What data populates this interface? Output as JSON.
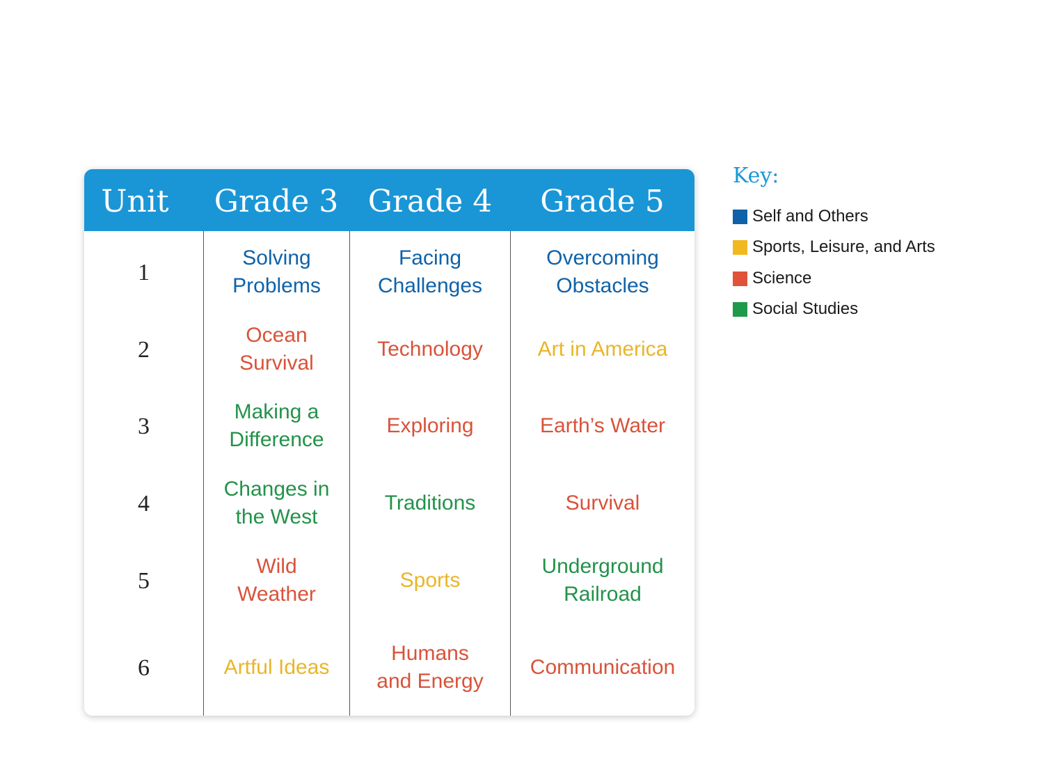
{
  "table": {
    "headers": [
      "Unit",
      "Grade 3",
      "Grade 4",
      "Grade 5"
    ],
    "rows": [
      {
        "unit": "1",
        "cells": [
          {
            "text": "Solving\nProblems",
            "category": "self"
          },
          {
            "text": "Facing\nChallenges",
            "category": "self"
          },
          {
            "text": "Overcoming\nObstacles",
            "category": "self"
          }
        ]
      },
      {
        "unit": "2",
        "cells": [
          {
            "text": "Ocean\nSurvival",
            "category": "science"
          },
          {
            "text": "Technology",
            "category": "science"
          },
          {
            "text": "Art in America",
            "category": "sports"
          }
        ]
      },
      {
        "unit": "3",
        "cells": [
          {
            "text": "Making a\nDifference",
            "category": "social"
          },
          {
            "text": "Exploring",
            "category": "science"
          },
          {
            "text": "Earth’s Water",
            "category": "science"
          }
        ]
      },
      {
        "unit": "4",
        "cells": [
          {
            "text": "Changes in\nthe West",
            "category": "social"
          },
          {
            "text": "Traditions",
            "category": "social"
          },
          {
            "text": "Survival",
            "category": "science"
          }
        ]
      },
      {
        "unit": "5",
        "cells": [
          {
            "text": "Wild\nWeather",
            "category": "science"
          },
          {
            "text": "Sports",
            "category": "sports"
          },
          {
            "text": "Underground\nRailroad",
            "category": "social"
          }
        ]
      },
      {
        "unit": "6",
        "cells": [
          {
            "text": "Artful Ideas",
            "category": "sports"
          },
          {
            "text": "Humans\nand Energy",
            "category": "science"
          },
          {
            "text": "Communication",
            "category": "science"
          }
        ]
      }
    ]
  },
  "key": {
    "title": "Key:",
    "items": [
      {
        "id": "self",
        "label": "Self and Others",
        "color": "#0f62a8",
        "text_color": "#0f62a8"
      },
      {
        "id": "sports",
        "label": "Sports, Leisure, and Arts",
        "color": "#f2b81f",
        "text_color": "#eab529"
      },
      {
        "id": "science",
        "label": "Science",
        "color": "#e0533a",
        "text_color": "#d8533a"
      },
      {
        "id": "social",
        "label": "Social Studies",
        "color": "#1e9a4a",
        "text_color": "#23924a"
      }
    ]
  },
  "colors": {
    "header_bg": "#1a96d6",
    "header_text": "#ffffff",
    "key_title": "#1a96d6"
  }
}
